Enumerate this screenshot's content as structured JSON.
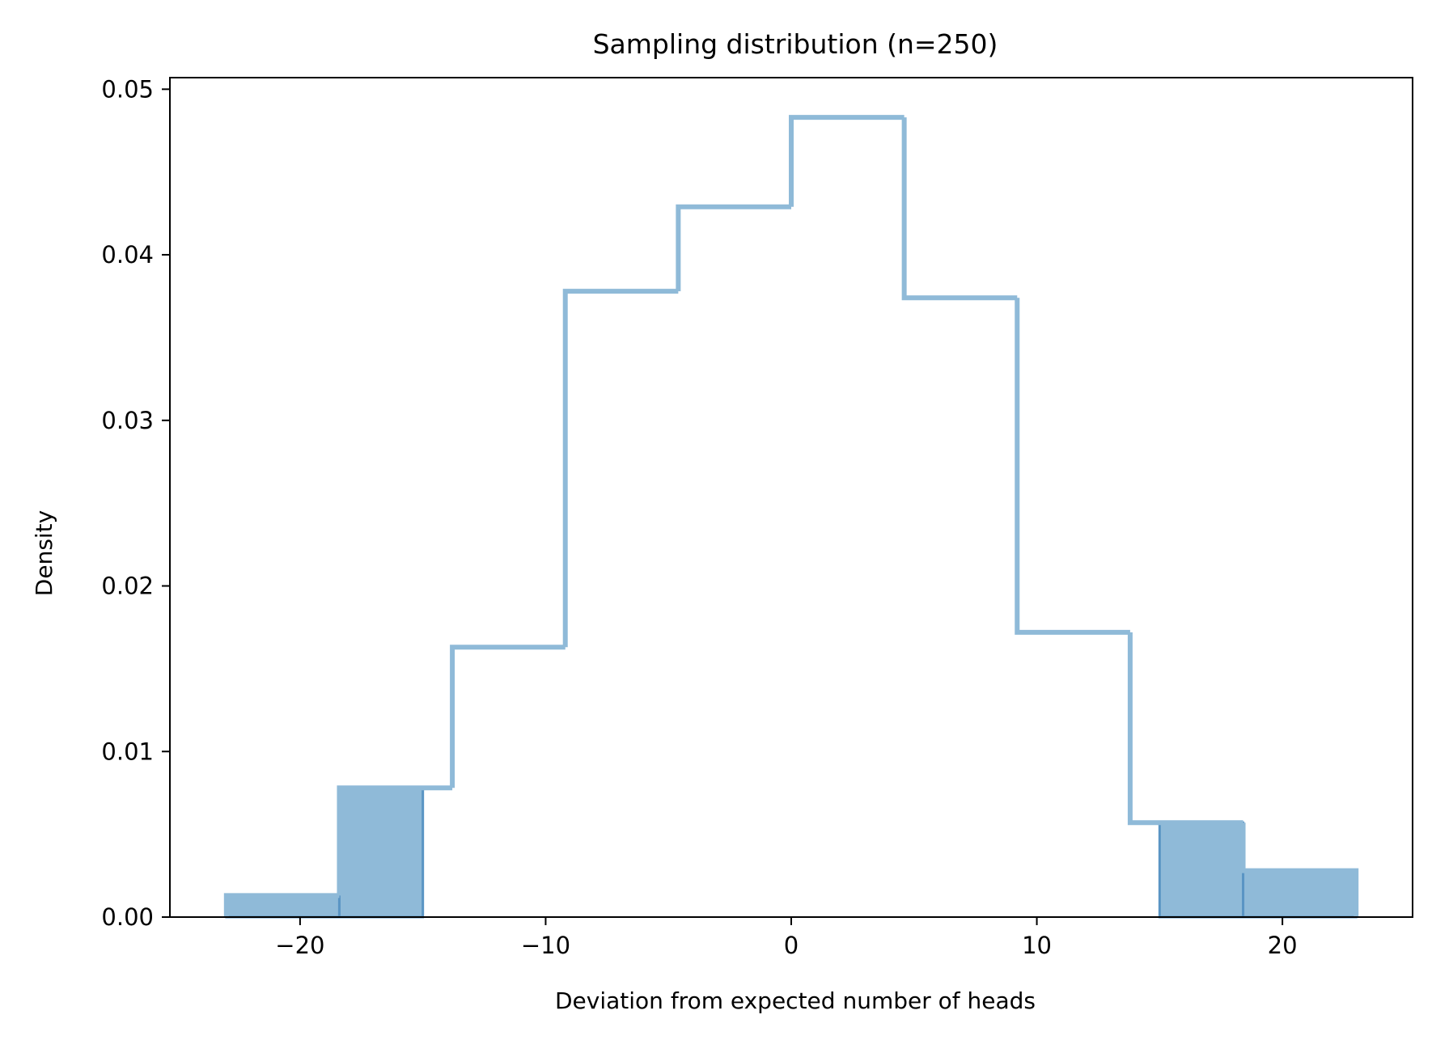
{
  "chart_data": {
    "type": "histogram",
    "title": "Sampling distribution (n=250)",
    "xlabel": "Deviation from expected number of heads",
    "ylabel": "Density",
    "xlim": [
      -25.3,
      25.3
    ],
    "ylim": [
      0,
      0.0507
    ],
    "xticks": [
      -20,
      -10,
      0,
      10,
      20
    ],
    "xtick_labels": [
      "−20",
      "−10",
      "0",
      "10",
      "20"
    ],
    "yticks": [
      0,
      0.01,
      0.02,
      0.03,
      0.04,
      0.05
    ],
    "ytick_labels": [
      "0.00",
      "0.01",
      "0.02",
      "0.03",
      "0.04",
      "0.05"
    ],
    "grid": false,
    "outline": {
      "bin_edges": [
        -23.0,
        -18.4,
        -13.8,
        -9.2,
        -4.6,
        0.0,
        4.6,
        9.2,
        13.8,
        18.4,
        23.0
      ],
      "densities": [
        0.0013,
        0.0078,
        0.0163,
        0.0378,
        0.0429,
        0.0483,
        0.0374,
        0.0172,
        0.0057,
        0.0028
      ],
      "style": "step",
      "color": "#8fbad8"
    },
    "shaded_tails": {
      "bins": [
        {
          "x0": -23.0,
          "x1": -18.4,
          "density": 0.0013
        },
        {
          "x0": -18.4,
          "x1": -15.0,
          "density": 0.0078
        },
        {
          "x0": 15.0,
          "x1": 18.4,
          "density": 0.0057
        },
        {
          "x0": 18.4,
          "x1": 23.0,
          "density": 0.0028
        }
      ],
      "fill_color": "#8fbad8",
      "edge_color": "#5a95c4"
    }
  }
}
